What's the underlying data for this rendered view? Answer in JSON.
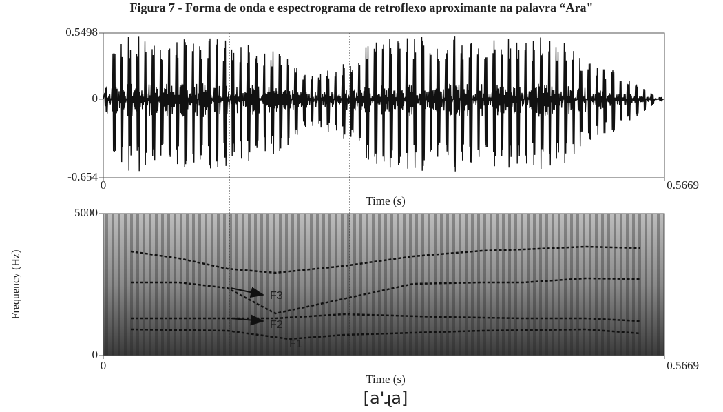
{
  "title": "Figura 7 - Forma de onda e espectrograma de retroflexo aproximante na palavra “Ara\"",
  "waveform": {
    "ylim": [
      -0.654,
      0.5498
    ],
    "yticks": [
      -0.654,
      0,
      0.5498
    ],
    "xlim": [
      0,
      0.5669
    ],
    "xticks": [
      0,
      0.5669
    ],
    "xlabel": "Time (s)"
  },
  "spectrogram": {
    "ylim": [
      0,
      5000
    ],
    "yticks": [
      0,
      5000
    ],
    "ylabel": "Frequency (Hz)",
    "xlim": [
      0,
      0.5669
    ],
    "xticks": [
      0,
      0.5669
    ],
    "xlabel": "Time (s)"
  },
  "formant_labels": [
    "F3",
    "F2",
    "F1"
  ],
  "transcription": "[a'ɻa]"
}
